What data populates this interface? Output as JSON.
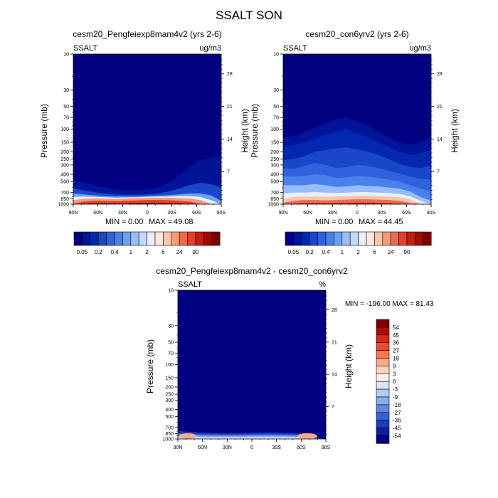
{
  "title": "SSALT SON",
  "chart_data": [
    {
      "type": "heatmap",
      "title": "cesm20_Pengfeiexp8mam4v2 (yrs 2-6)",
      "variable": "SSALT",
      "units": "ug/m3",
      "ylabel": "Pressure (mb)",
      "ylabel_right": "Height (km)",
      "x_ticks": [
        "90N",
        "60N",
        "30N",
        "0",
        "30S",
        "60S",
        "90S"
      ],
      "y_ticks": [
        "10",
        "30",
        "50",
        "70",
        "100",
        "150",
        "200",
        "250",
        "300",
        "400",
        "500",
        "700",
        "850",
        "1000"
      ],
      "y_ticks_right": [
        "28",
        "21",
        "14",
        "7"
      ],
      "ylim": [
        1000,
        10
      ],
      "min_label": "MIN =",
      "min_value": "0.00",
      "max_label": "MAX =",
      "max_value": "49.08",
      "colorbar_labels": [
        "0.05",
        "0.2",
        "0.4",
        "1",
        "2",
        "6",
        "24",
        "90"
      ]
    },
    {
      "type": "heatmap",
      "title": "cesm20_con6yrv2 (yrs 2-6)",
      "variable": "SSALT",
      "units": "ug/m3",
      "ylabel": "Pressure (mb)",
      "ylabel_right": "Height (km)",
      "x_ticks": [
        "90N",
        "60N",
        "30N",
        "0",
        "30S",
        "60S",
        "90S"
      ],
      "y_ticks": [
        "10",
        "30",
        "50",
        "70",
        "100",
        "150",
        "200",
        "250",
        "300",
        "400",
        "500",
        "700",
        "850",
        "1000"
      ],
      "y_ticks_right": [
        "28",
        "21",
        "14",
        "7"
      ],
      "ylim": [
        1000,
        10
      ],
      "min_label": "MIN =",
      "min_value": "0.00",
      "max_label": "MAX =",
      "max_value": "44.45",
      "colorbar_labels": [
        "0.05",
        "0.2",
        "0.4",
        "1",
        "2",
        "6",
        "24",
        "90"
      ]
    },
    {
      "type": "heatmap",
      "title": "cesm20_Pengfeiexp8mam4v2 - cesm20_con6yrv2",
      "variable": "SSALT",
      "units": "%",
      "ylabel": "Pressure (mb)",
      "ylabel_right": "Height (km)",
      "x_ticks": [
        "90N",
        "60N",
        "30N",
        "0",
        "30S",
        "60S",
        "90S"
      ],
      "y_ticks": [
        "10",
        "30",
        "50",
        "70",
        "100",
        "150",
        "200",
        "250",
        "300",
        "400",
        "500",
        "700",
        "850",
        "1000"
      ],
      "y_ticks_right": [
        "28",
        "21",
        "14",
        "7"
      ],
      "ylim": [
        1000,
        10
      ],
      "minmax_text": "MIN = -196.00  MAX =  81.43",
      "colorbar_labels": [
        "54",
        "45",
        "36",
        "27",
        "18",
        "9",
        "3",
        "0",
        "-3",
        "-9",
        "-18",
        "-27",
        "-36",
        "-45",
        "-54"
      ]
    }
  ],
  "colors": {
    "seq": [
      "#000080",
      "#00149a",
      "#0328b0",
      "#1a46c8",
      "#2f62dc",
      "#4a80ec",
      "#6d9ff3",
      "#98bdf7",
      "#c3d8fa",
      "#e8f0fc",
      "#fde7dc",
      "#fbc5ac",
      "#f79a7a",
      "#ef6a4c",
      "#e0402a",
      "#c21e12",
      "#9b0c06",
      "#7a0000"
    ],
    "div": [
      "#7f0000",
      "#b00d04",
      "#d62a13",
      "#ee4b2a",
      "#f77a55",
      "#fbab88",
      "#fdd3bc",
      "#fdf0e6",
      "#d9e6fa",
      "#b3cbf3",
      "#8aacec",
      "#5f88e3",
      "#3562d6",
      "#1a3cbe",
      "#0b1ea0",
      "#000080"
    ]
  }
}
